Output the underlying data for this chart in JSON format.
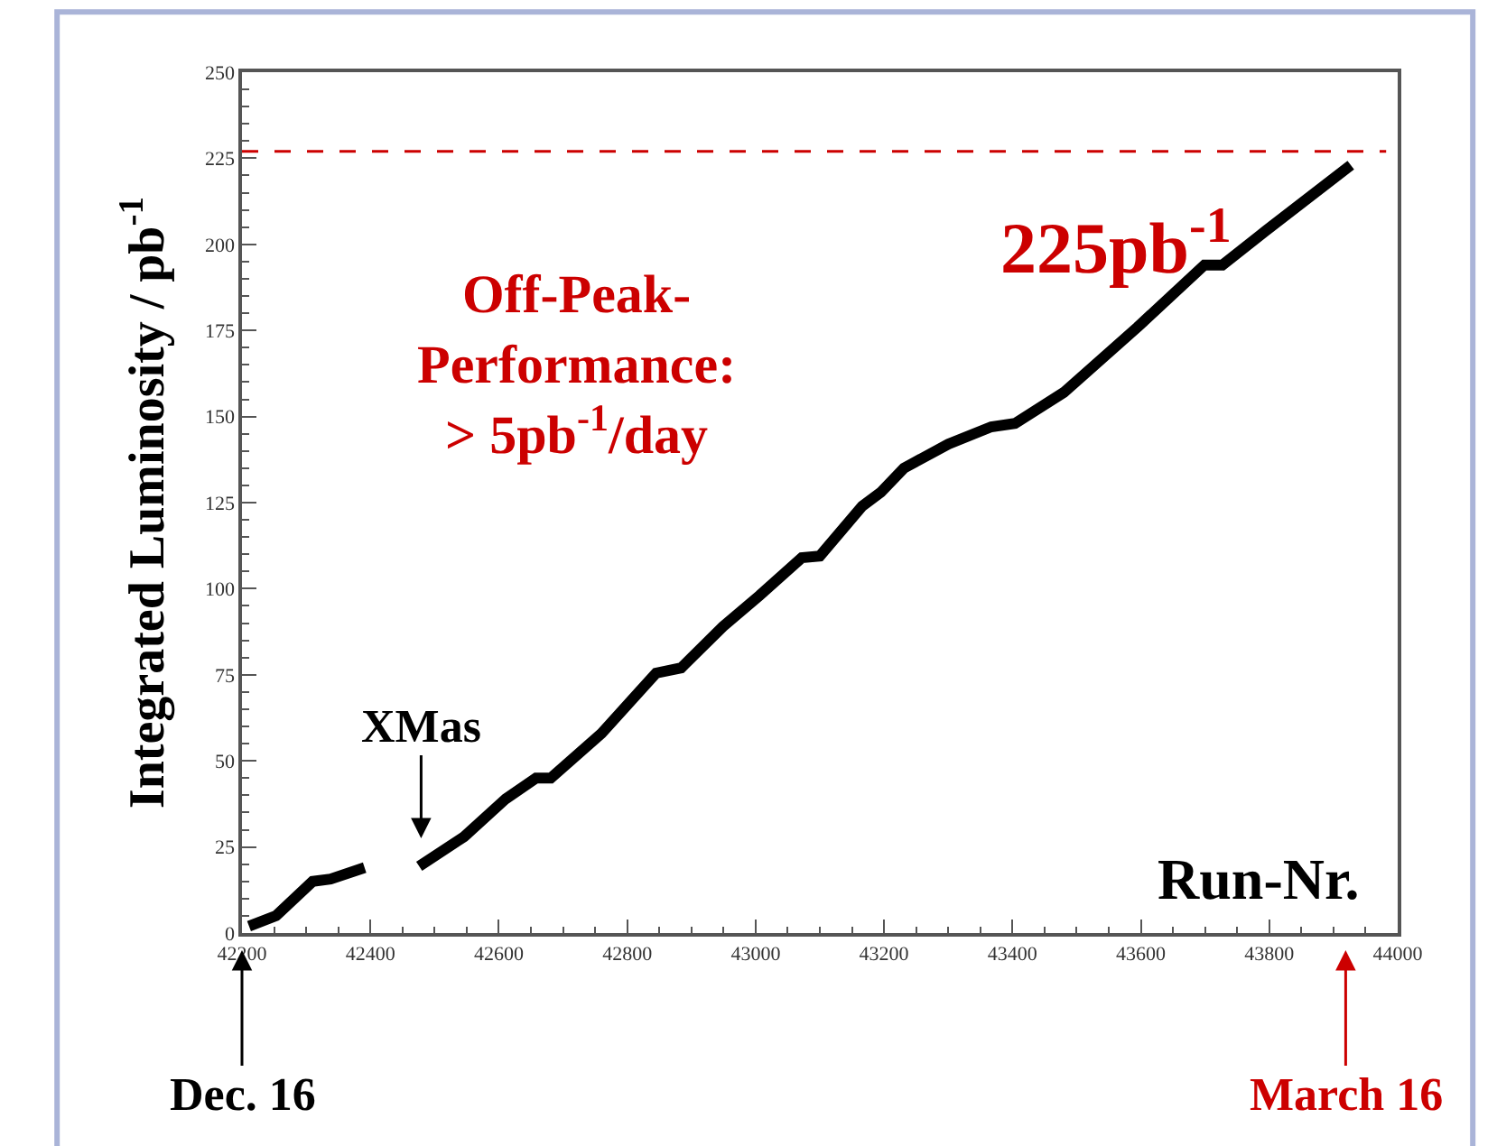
{
  "chart_data": {
    "type": "line",
    "xlabel": "Run-Nr.",
    "ylabel": "Integrated Luminosity / pb$^{-1}$",
    "x": [
      42211,
      42253,
      42310,
      42338,
      42391,
      42433,
      42476,
      42546,
      42611,
      42658,
      42681,
      42760,
      42845,
      42884,
      42949,
      43006,
      43072,
      43100,
      43166,
      43195,
      43231,
      43300,
      43367,
      43404,
      43480,
      43595,
      43699,
      43727,
      43795,
      43927
    ],
    "series": [
      {
        "color": "#000000",
        "values": [
          2,
          5,
          15,
          15.7,
          19,
          null,
          19.4,
          28,
          39,
          45,
          45,
          58,
          75.5,
          77,
          89,
          98,
          109,
          109.5,
          124,
          128,
          135,
          142,
          147,
          148,
          157,
          176,
          194,
          194,
          204,
          223
        ]
      }
    ],
    "xlim": [
      42200,
      44000
    ],
    "xticks": [
      42200,
      42400,
      42600,
      42800,
      43000,
      43200,
      43400,
      43600,
      43800,
      44000
    ],
    "ylim": [
      0,
      250
    ],
    "yticks": [
      0,
      25,
      50,
      75,
      100,
      125,
      150,
      175,
      200,
      225,
      250
    ],
    "marker": "none",
    "line_style": "solid",
    "ref_lines": [
      {
        "axis": "y",
        "value": 227,
        "color": "#cc0000",
        "line_style": "dashed"
      }
    ],
    "annotations": [
      "225pb$^{-1}$",
      "Off-Peak-\nPerformance:\n> 5pb$^{-1}$/day",
      "XMas",
      "Dec. 16",
      "March 16"
    ]
  }
}
